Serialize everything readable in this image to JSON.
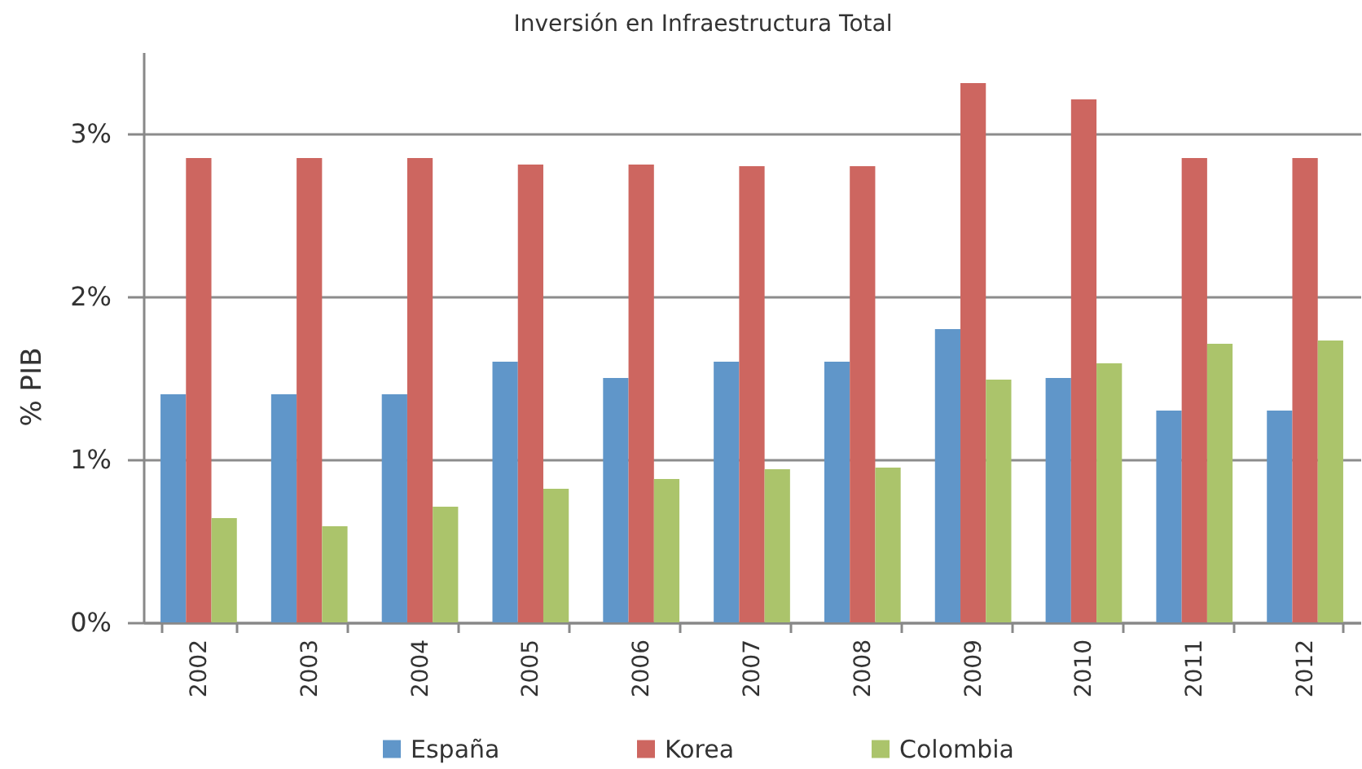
{
  "chart_data": {
    "type": "bar",
    "title": "Inversión en Infraestructura Total",
    "ylabel": "% PIB",
    "categories": [
      "2002",
      "2003",
      "2004",
      "2005",
      "2006",
      "2007",
      "2008",
      "2009",
      "2010",
      "2011",
      "2012"
    ],
    "series": [
      {
        "name": "España",
        "color": "#6096c9",
        "values": [
          1.4,
          1.4,
          1.4,
          1.6,
          1.5,
          1.6,
          1.6,
          1.8,
          1.5,
          1.3,
          1.3
        ]
      },
      {
        "name": "Korea",
        "color": "#cd6660",
        "values": [
          2.85,
          2.85,
          2.85,
          2.81,
          2.81,
          2.8,
          2.8,
          3.31,
          3.21,
          2.85,
          2.85
        ]
      },
      {
        "name": "Colombia",
        "color": "#abc46b",
        "values": [
          0.64,
          0.59,
          0.71,
          0.82,
          0.88,
          0.94,
          0.95,
          1.49,
          1.59,
          1.71,
          1.73
        ]
      }
    ],
    "ylim": [
      0,
      3.5
    ],
    "yticks": [
      {
        "value": 0,
        "label": "0%"
      },
      {
        "value": 1,
        "label": "1%"
      },
      {
        "value": 2,
        "label": "2%"
      },
      {
        "value": 3,
        "label": "3%"
      }
    ],
    "grid": "y",
    "legend": "bottom"
  }
}
